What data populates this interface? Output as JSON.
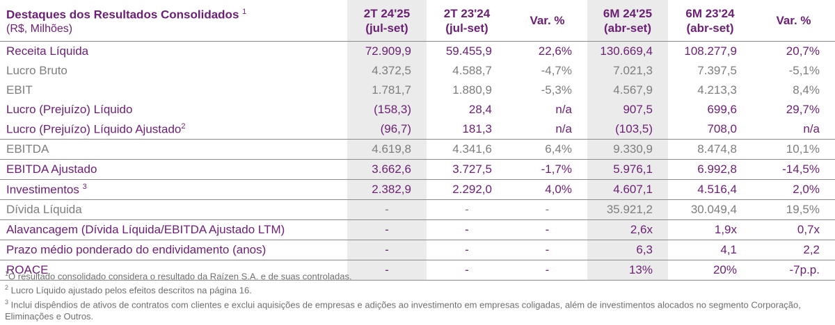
{
  "header": {
    "title": "Destaques dos Resultados Consolidados",
    "title_sup": "1",
    "subtitle": "(R$, Milhões)",
    "columns": [
      {
        "line1": "2T 24'25",
        "line2": "(jul-set)"
      },
      {
        "line1": "2T 23'24",
        "line2": "(jul-set)"
      },
      {
        "line1": "Var. %",
        "line2": ""
      },
      {
        "line1": "6M 24'25",
        "line2": "(abr-set)"
      },
      {
        "line1": "6M 23'24",
        "line2": "(abr-set)"
      },
      {
        "line1": "Var. %",
        "line2": ""
      }
    ]
  },
  "rows": [
    {
      "label": "Receita Líquida",
      "sup": "",
      "values": [
        "72.909,9",
        "59.455,9",
        "22,6%",
        "130.669,4",
        "108.277,9",
        "20,7%"
      ]
    },
    {
      "label": "Lucro Bruto",
      "sup": "",
      "values": [
        "4.372,5",
        "4.588,7",
        "-4,7%",
        "7.021,3",
        "7.397,5",
        "-5,1%"
      ]
    },
    {
      "label": "EBIT",
      "sup": "",
      "values": [
        "1.781,7",
        "1.880,9",
        "-5,3%",
        "4.567,9",
        "4.213,3",
        "8,4%"
      ]
    },
    {
      "label": "Lucro (Prejuízo) Líquido",
      "sup": "",
      "values": [
        "(158,3)",
        "28,4",
        "n/a",
        "907,5",
        "699,6",
        "29,7%"
      ]
    },
    {
      "label": "Lucro (Prejuízo) Líquido Ajustado",
      "sup": "2",
      "values": [
        "(96,7)",
        "181,3",
        "n/a",
        "(103,5)",
        "708,0",
        "n/a"
      ]
    },
    {
      "label": "EBITDA",
      "sup": "",
      "values": [
        "4.619,8",
        "4.341,6",
        "6,4%",
        "9.330,9",
        "8.474,8",
        "10,1%"
      ]
    },
    {
      "label": "EBITDA Ajustado",
      "sup": "",
      "values": [
        "3.662,6",
        "3.727,5",
        "-1,7%",
        "5.976,1",
        "6.992,8",
        "-14,5%"
      ]
    },
    {
      "label": "Investimentos",
      "sup": "3",
      "values": [
        "2.382,9",
        "2.292,0",
        "4,0%",
        "4.607,1",
        "4.516,4",
        "2,0%"
      ]
    },
    {
      "label": "Dívida Líquida",
      "sup": "",
      "values": [
        "-",
        "-",
        "-",
        "35.921,2",
        "30.049,4",
        "19,5%"
      ]
    },
    {
      "label": "Alavancagem (Dívida Líquida/EBITDA Ajustado LTM)",
      "sup": "",
      "values": [
        "-",
        "-",
        "-",
        "2,6x",
        "1,9x",
        "0,7x"
      ]
    },
    {
      "label": "Prazo médio ponderado do endividamento (anos)",
      "sup": "",
      "values": [
        "-",
        "-",
        "-",
        "6,3",
        "4,1",
        "2,2"
      ]
    },
    {
      "label": "ROACE",
      "sup": "",
      "values": [
        "-",
        "-",
        "-",
        "13%",
        "20%",
        "-7p.p."
      ]
    }
  ],
  "footnotes": [
    {
      "sup": "1",
      "text": "O resultado consolidado considera o resultado da Raízen S.A. e de suas controladas."
    },
    {
      "sup": "2",
      "text": "Lucro Líquido ajustado pelos efeitos descritos na página 16."
    },
    {
      "sup": "3",
      "text": "Inclui dispêndios de ativos de contratos com clientes e exclui aquisições de empresas e adições ao investimento em empresas coligadas, além de investimentos alocados no segmento Corporação, Eliminações e Outros."
    }
  ],
  "colors": {
    "purple": "#6b1f74",
    "gray": "#7d7d7d",
    "shade": "#ebebeb"
  }
}
